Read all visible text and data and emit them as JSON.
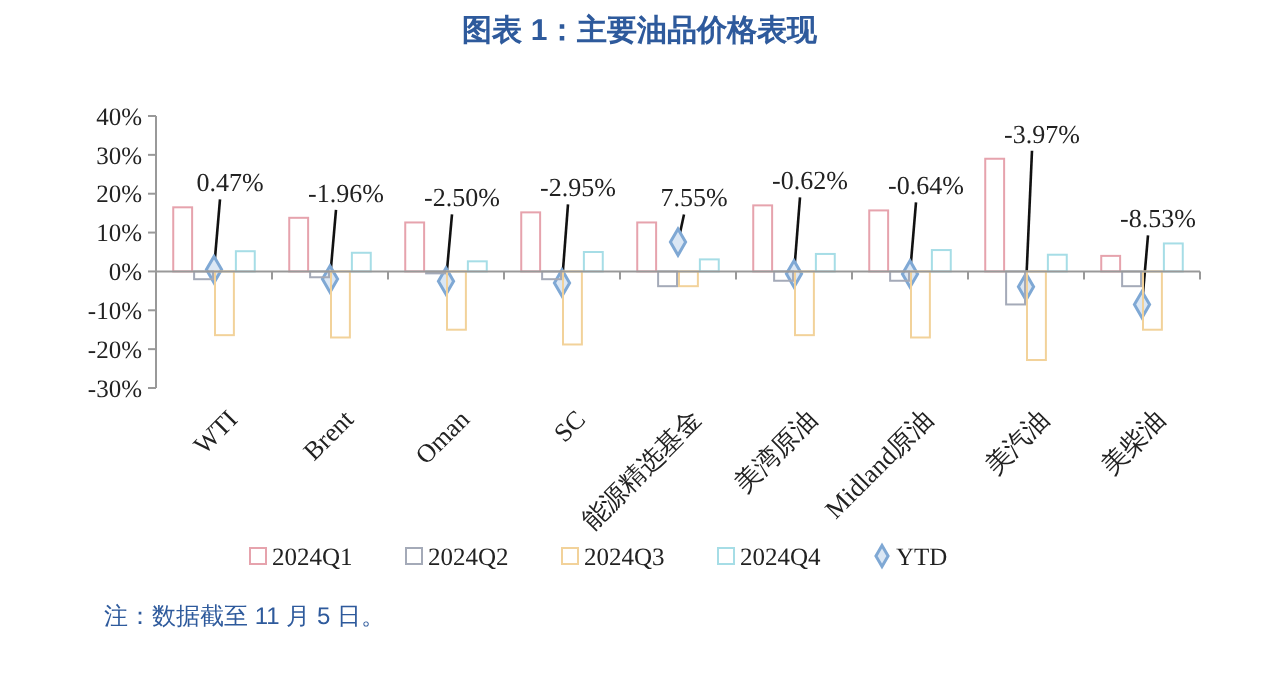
{
  "chart_data": {
    "type": "bar",
    "title": "图表 1：主要油品价格表现",
    "categories": [
      "WTI",
      "Brent",
      "Oman",
      "SC",
      "能源精选基金",
      "美湾原油",
      "Midland原油",
      "美汽油",
      "美柴油"
    ],
    "series": [
      {
        "name": "2024Q1",
        "color": "#e6a3ad",
        "values": [
          16.5,
          13.8,
          12.6,
          15.2,
          12.6,
          17,
          15.7,
          29,
          4
        ]
      },
      {
        "name": "2024Q2",
        "color": "#a4aab8",
        "values": [
          -2,
          -1.5,
          -0.5,
          -2,
          -3.8,
          -2.4,
          -2.4,
          -8.5,
          -3.8
        ]
      },
      {
        "name": "2024Q3",
        "color": "#f2d29a",
        "values": [
          -16.4,
          -17,
          -15,
          -18.8,
          -3.8,
          -16.4,
          -17,
          -22.8,
          -15
        ]
      },
      {
        "name": "2024Q4",
        "color": "#a6dde6",
        "values": [
          5.2,
          4.8,
          2.6,
          5,
          3.1,
          4.5,
          5.5,
          4.3,
          7.2
        ]
      },
      {
        "name": "YTD",
        "type": "scatter",
        "color": "#7fa8d4",
        "values": [
          0.47,
          -1.96,
          -2.5,
          -2.95,
          7.55,
          -0.62,
          -0.64,
          -3.97,
          -8.53
        ],
        "value_labels": [
          "0.47%",
          "-1.96%",
          "-2.50%",
          "-2.95%",
          "7.55%",
          "-0.62%",
          "-0.64%",
          "-3.97%",
          "-8.53%"
        ]
      }
    ],
    "marker": "diamond",
    "ylim": [
      -30,
      40
    ],
    "yticks": [
      {
        "value": -30,
        "label": "-30%"
      },
      {
        "value": -20,
        "label": "-20%"
      },
      {
        "value": -10,
        "label": "-10%"
      },
      {
        "value": 0,
        "label": "0%"
      },
      {
        "value": 10,
        "label": "10%"
      },
      {
        "value": 20,
        "label": "20%"
      },
      {
        "value": 30,
        "label": "30%"
      },
      {
        "value": 40,
        "label": "40%"
      }
    ],
    "legend": "bottom",
    "annotations": [
      "注：数据截至 11 月 5 日。"
    ]
  }
}
